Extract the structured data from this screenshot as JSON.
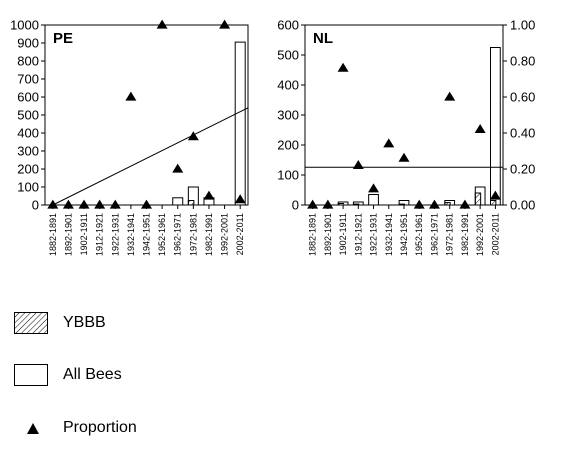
{
  "chart_data": [
    {
      "type": "bar",
      "title": "PE",
      "categories": [
        "1882-1891",
        "1892-1901",
        "1902-1911",
        "1912-1921",
        "1922-1931",
        "1932-1941",
        "1942-1951",
        "1952-1961",
        "1962-1971",
        "1972-1981",
        "1982-1991",
        "1992-2001",
        "2002-2011"
      ],
      "ylim": [
        0,
        1000
      ],
      "yticks": [
        0,
        100,
        200,
        300,
        400,
        500,
        600,
        700,
        800,
        900,
        1000
      ],
      "series": [
        {
          "name": "YBBB",
          "kind": "bar-hatched",
          "values": [
            0,
            0,
            0,
            0,
            0,
            0,
            0,
            0,
            0,
            25,
            0,
            0,
            0
          ]
        },
        {
          "name": "All Bees",
          "kind": "bar",
          "values": [
            0,
            0,
            0,
            0,
            0,
            0,
            0,
            0,
            40,
            100,
            40,
            0,
            905
          ]
        },
        {
          "name": "Proportion",
          "kind": "marker",
          "axis": "left-scaled-1000",
          "values": [
            0,
            0,
            0,
            0,
            0,
            0.6,
            0,
            1.0,
            0.2,
            0.38,
            0.05,
            1.0,
            0.03
          ]
        }
      ],
      "trend_line": {
        "from": [
          0,
          0
        ],
        "to": [
          12.8,
          0.54
        ]
      }
    },
    {
      "type": "bar",
      "title": "NL",
      "categories": [
        "1882-1891",
        "1892-1901",
        "1902-1911",
        "1912-1921",
        "1922-1931",
        "1932-1941",
        "1942-1951",
        "1952-1961",
        "1962-1971",
        "1972-1981",
        "1982-1991",
        "1992-2001",
        "2002-2011"
      ],
      "ylim": [
        0,
        600
      ],
      "yticks": [
        0,
        100,
        200,
        300,
        400,
        500,
        600
      ],
      "y2lim": [
        0,
        1
      ],
      "y2ticks": [
        "0.00",
        "0.20",
        "0.40",
        "0.60",
        "0.80",
        "1.00"
      ],
      "series": [
        {
          "name": "YBBB",
          "kind": "bar-hatched",
          "values": [
            0,
            0,
            5,
            3,
            0,
            0,
            3,
            0,
            0,
            8,
            0,
            40,
            15
          ]
        },
        {
          "name": "All Bees",
          "kind": "bar",
          "values": [
            0,
            0,
            10,
            10,
            35,
            0,
            15,
            0,
            0,
            15,
            0,
            60,
            525
          ]
        },
        {
          "name": "Proportion",
          "kind": "marker",
          "axis": "right",
          "values": [
            0,
            0,
            0.76,
            0.22,
            0.09,
            0.34,
            0.26,
            0,
            0,
            0.6,
            0,
            0.42,
            0.05
          ]
        }
      ],
      "trend_line": {
        "from": [
          -0.5,
          0.21
        ],
        "to": [
          12.5,
          0.21
        ]
      }
    }
  ],
  "legend": {
    "ybbb": "YBBB",
    "all_bees": "All Bees",
    "proportion": "Proportion"
  }
}
